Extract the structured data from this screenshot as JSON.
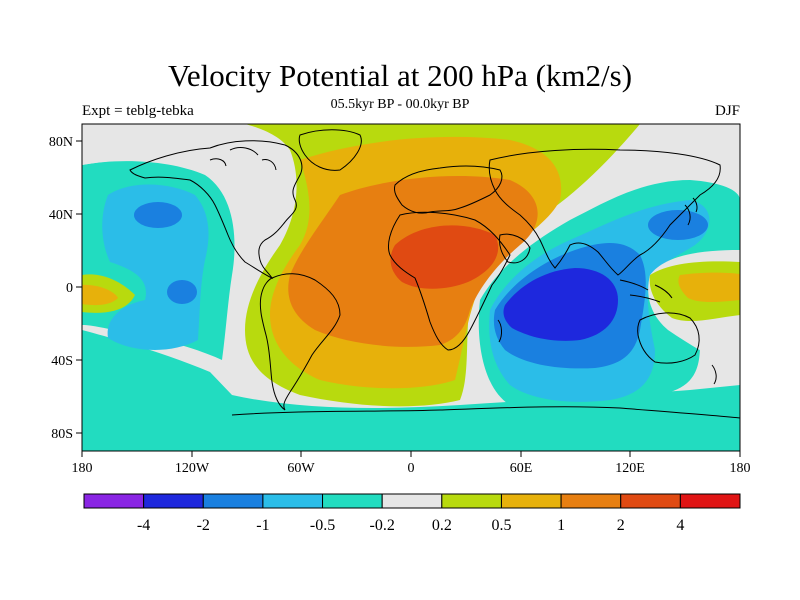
{
  "header": {
    "title": "Velocity Potential at 200 hPa (km2/s)",
    "subtitle": "05.5kyr BP - 00.0kyr BP",
    "left_label": "Expt = teblg-tebka",
    "right_label": "DJF"
  },
  "axes": {
    "x_ticks": [
      "180",
      "120W",
      "60W",
      "0",
      "60E",
      "120E",
      "180"
    ],
    "y_ticks": [
      "80N",
      "40N",
      "0",
      "40S",
      "80S"
    ]
  },
  "colorbar": {
    "labels": [
      "-4",
      "-2",
      "-1",
      "-0.5",
      "-0.2",
      "0.2",
      "0.5",
      "1",
      "2",
      "4"
    ],
    "colors": [
      "#8a25e4",
      "#1e28dd",
      "#1a80e0",
      "#2bbde8",
      "#22dcc0",
      "#e6e6e6",
      "#b8da0e",
      "#e7b10b",
      "#e77f11",
      "#e04a12",
      "#e01414"
    ]
  },
  "map_colors": {
    "land_outline": "#000000",
    "neutral": "#e6e6e6"
  }
}
